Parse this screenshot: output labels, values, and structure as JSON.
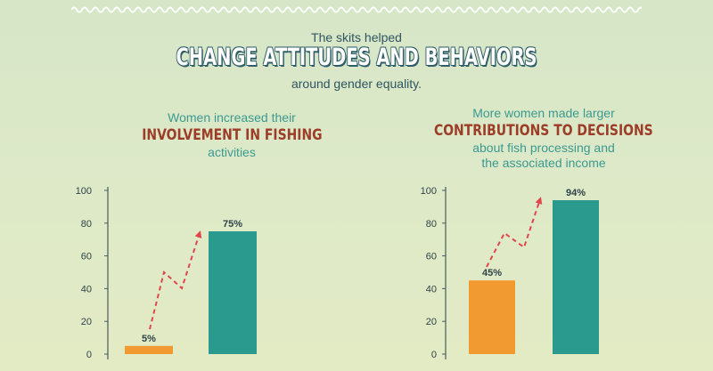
{
  "header": {
    "line1": "The skits helped",
    "title": "CHANGE ATTITUDES AND BEHAVIORS",
    "line3": "around gender equality."
  },
  "left_caption": {
    "top": "Women increased their",
    "bold": "INVOLVEMENT IN FISHING",
    "bottom": "activities"
  },
  "right_caption": {
    "top": "More women made larger",
    "bold": "CONTRIBUTIONS TO DECISIONS",
    "bottom1": "about fish processing and",
    "bottom2": "the associated income"
  },
  "colors": {
    "before_bar": "#f29a32",
    "after_bar": "#2a9a8e",
    "arrow": "#e0474c",
    "axis": "#4a5a5e",
    "label": "#2f4248"
  },
  "chart_data": [
    {
      "type": "bar",
      "categories": [
        "",
        ""
      ],
      "values": [
        5,
        75
      ],
      "data_labels": [
        "5%",
        "75%"
      ],
      "y_ticks": [
        "0",
        "20",
        "40",
        "60",
        "80",
        "100"
      ],
      "ylim": [
        0,
        100
      ],
      "annotation": "dashed red zig-zag arrow rising from the first bar to the second"
    },
    {
      "type": "bar",
      "categories": [
        "",
        ""
      ],
      "values": [
        45,
        94
      ],
      "data_labels": [
        "45%",
        "94%"
      ],
      "y_ticks": [
        "0",
        "20",
        "40",
        "60",
        "80",
        "100"
      ],
      "ylim": [
        0,
        100
      ],
      "annotation": "dashed red zig-zag arrow rising from the first bar to the second"
    }
  ]
}
